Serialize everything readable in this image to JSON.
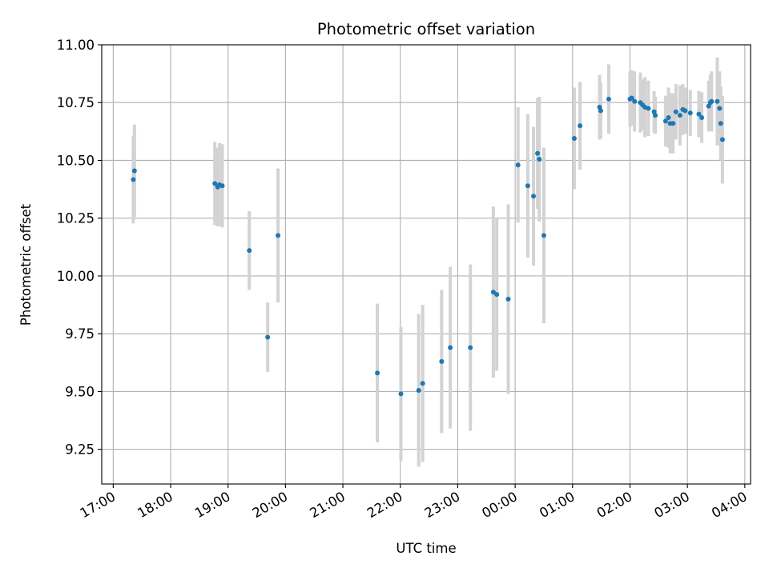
{
  "chart_data": {
    "type": "scatter",
    "title": "Photometric offset variation",
    "xlabel": "UTC time",
    "ylabel": "Photometric offset",
    "x_unit": "UTC time of night (hours after 17:00, 17:00 to 04:00)",
    "xlim": [
      -0.2,
      11.1
    ],
    "ylim": [
      9.1,
      11.0
    ],
    "x_ticks": [
      0,
      1,
      2,
      3,
      4,
      5,
      6,
      7,
      8,
      9,
      10,
      11
    ],
    "x_tick_labels": [
      "17:00",
      "18:00",
      "19:00",
      "20:00",
      "21:00",
      "22:00",
      "23:00",
      "00:00",
      "01:00",
      "02:00",
      "03:00",
      "04:00"
    ],
    "y_ticks": [
      9.25,
      9.5,
      9.75,
      10.0,
      10.25,
      10.5,
      10.75,
      11.0
    ],
    "y_tick_labels": [
      "9.25",
      "9.50",
      "9.75",
      "10.00",
      "10.25",
      "10.50",
      "10.75",
      "11.00"
    ],
    "grid": true,
    "colors": {
      "point": "#1f77b4",
      "errorbar": "#d3d3d3"
    },
    "series": [
      {
        "x": [
          0.35,
          0.37,
          1.77,
          1.82,
          1.85,
          1.9,
          2.37,
          2.69,
          2.87,
          4.6,
          5.01,
          5.32,
          5.39,
          5.72,
          5.87,
          6.22,
          6.62,
          6.68,
          6.88,
          7.05,
          7.22,
          7.32,
          7.39,
          7.42,
          7.5,
          8.03,
          8.13,
          8.47,
          8.49,
          8.63,
          9.0,
          9.03,
          9.08,
          9.18,
          9.22,
          9.26,
          9.32,
          9.42,
          9.44,
          9.62,
          9.67,
          9.7,
          9.75,
          9.8,
          9.87,
          9.92,
          9.96,
          10.05,
          10.2,
          10.25,
          10.37,
          10.4,
          10.42,
          10.52,
          10.56,
          10.58,
          10.61
        ],
        "y": [
          10.417,
          10.455,
          10.4,
          10.385,
          10.395,
          10.39,
          10.11,
          9.735,
          10.175,
          9.58,
          9.49,
          9.505,
          9.535,
          9.63,
          9.69,
          9.69,
          9.93,
          9.92,
          9.9,
          10.48,
          10.39,
          10.345,
          10.53,
          10.505,
          10.175,
          10.595,
          10.65,
          10.73,
          10.715,
          10.765,
          10.765,
          10.77,
          10.755,
          10.75,
          10.74,
          10.73,
          10.725,
          10.71,
          10.695,
          10.67,
          10.685,
          10.66,
          10.66,
          10.71,
          10.695,
          10.72,
          10.715,
          10.705,
          10.7,
          10.685,
          10.735,
          10.75,
          10.755,
          10.755,
          10.725,
          10.66,
          10.59
        ],
        "yerr": [
          0.19,
          0.2,
          0.18,
          0.17,
          0.18,
          0.18,
          0.17,
          0.15,
          0.29,
          0.3,
          0.29,
          0.33,
          0.34,
          0.31,
          0.35,
          0.36,
          0.37,
          0.33,
          0.41,
          0.25,
          0.31,
          0.3,
          0.24,
          0.27,
          0.38,
          0.22,
          0.19,
          0.14,
          0.12,
          0.15,
          0.12,
          0.12,
          0.13,
          0.13,
          0.11,
          0.13,
          0.12,
          0.09,
          0.08,
          0.11,
          0.13,
          0.13,
          0.13,
          0.12,
          0.13,
          0.11,
          0.1,
          0.1,
          0.1,
          0.11,
          0.11,
          0.12,
          0.13,
          0.19,
          0.16,
          0.16,
          0.19
        ]
      }
    ]
  }
}
